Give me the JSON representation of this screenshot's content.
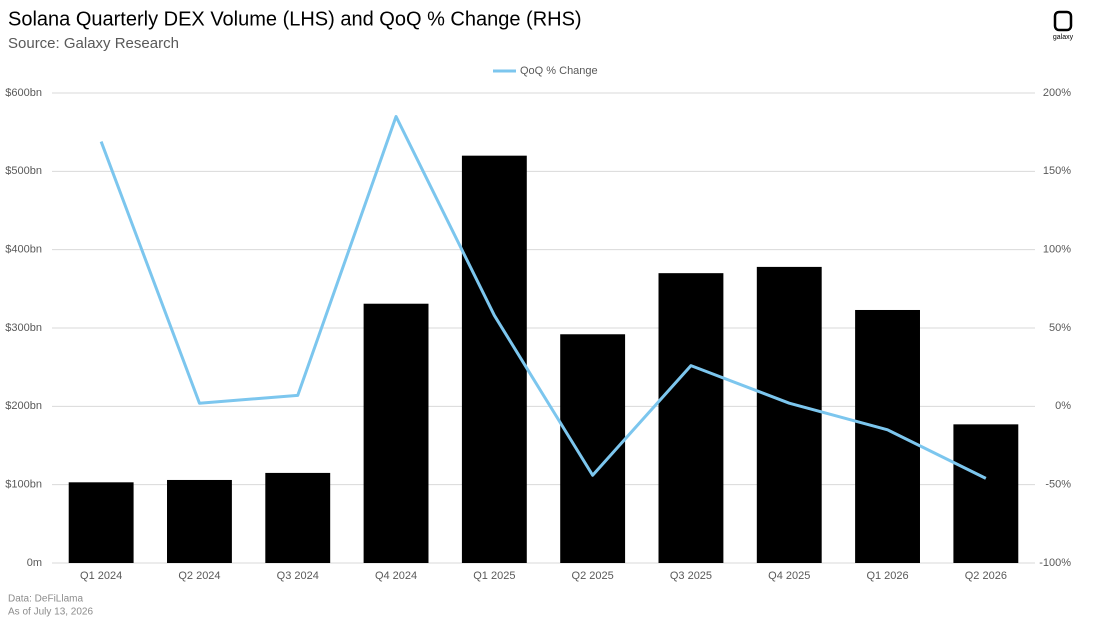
{
  "chart_data": {
    "type": "bar",
    "title": "Solana Quarterly DEX Volume (LHS) and QoQ % Change (RHS)",
    "subtitle": "Source: Galaxy Research",
    "logo_text": "galaxy",
    "notes": [
      "Data: DeFiLlama",
      "As of July 13, 2026"
    ],
    "categories": [
      "Q1 2024",
      "Q2 2024",
      "Q3 2024",
      "Q4 2024",
      "Q1 2025",
      "Q2 2025",
      "Q3 2025",
      "Q4 2025",
      "Q1 2026",
      "Q2 2026"
    ],
    "series": [
      {
        "color": "#000000",
        "values": [
          103,
          106,
          115,
          331,
          520,
          292,
          370,
          378,
          323,
          177
        ]
      },
      {
        "name": "QoQ % Change",
        "type": "line",
        "axis": "y2",
        "color": "#7cc6ee",
        "values": [
          169,
          2,
          7,
          185,
          58,
          -44,
          26,
          2,
          -15,
          -46
        ]
      }
    ],
    "ylim": [
      0,
      600
    ],
    "yticks": [
      {
        "value": 0,
        "label": "0m"
      },
      {
        "value": 100,
        "label": "$100bn"
      },
      {
        "value": 200,
        "label": "$200bn"
      },
      {
        "value": 300,
        "label": "$300bn"
      },
      {
        "value": 400,
        "label": "$400bn"
      },
      {
        "value": 500,
        "label": "$500bn"
      },
      {
        "value": 600,
        "label": "$600bn"
      }
    ],
    "y2lim": [
      -100,
      200
    ],
    "y2ticks": [
      {
        "value": -100,
        "label": "-100%"
      },
      {
        "value": -50,
        "label": "-50%"
      },
      {
        "value": 0,
        "label": "0%"
      },
      {
        "value": 50,
        "label": "50%"
      },
      {
        "value": 100,
        "label": "100%"
      },
      {
        "value": 150,
        "label": "150%"
      },
      {
        "value": 200,
        "label": "200%"
      }
    ],
    "grid": true,
    "legend": "top"
  }
}
